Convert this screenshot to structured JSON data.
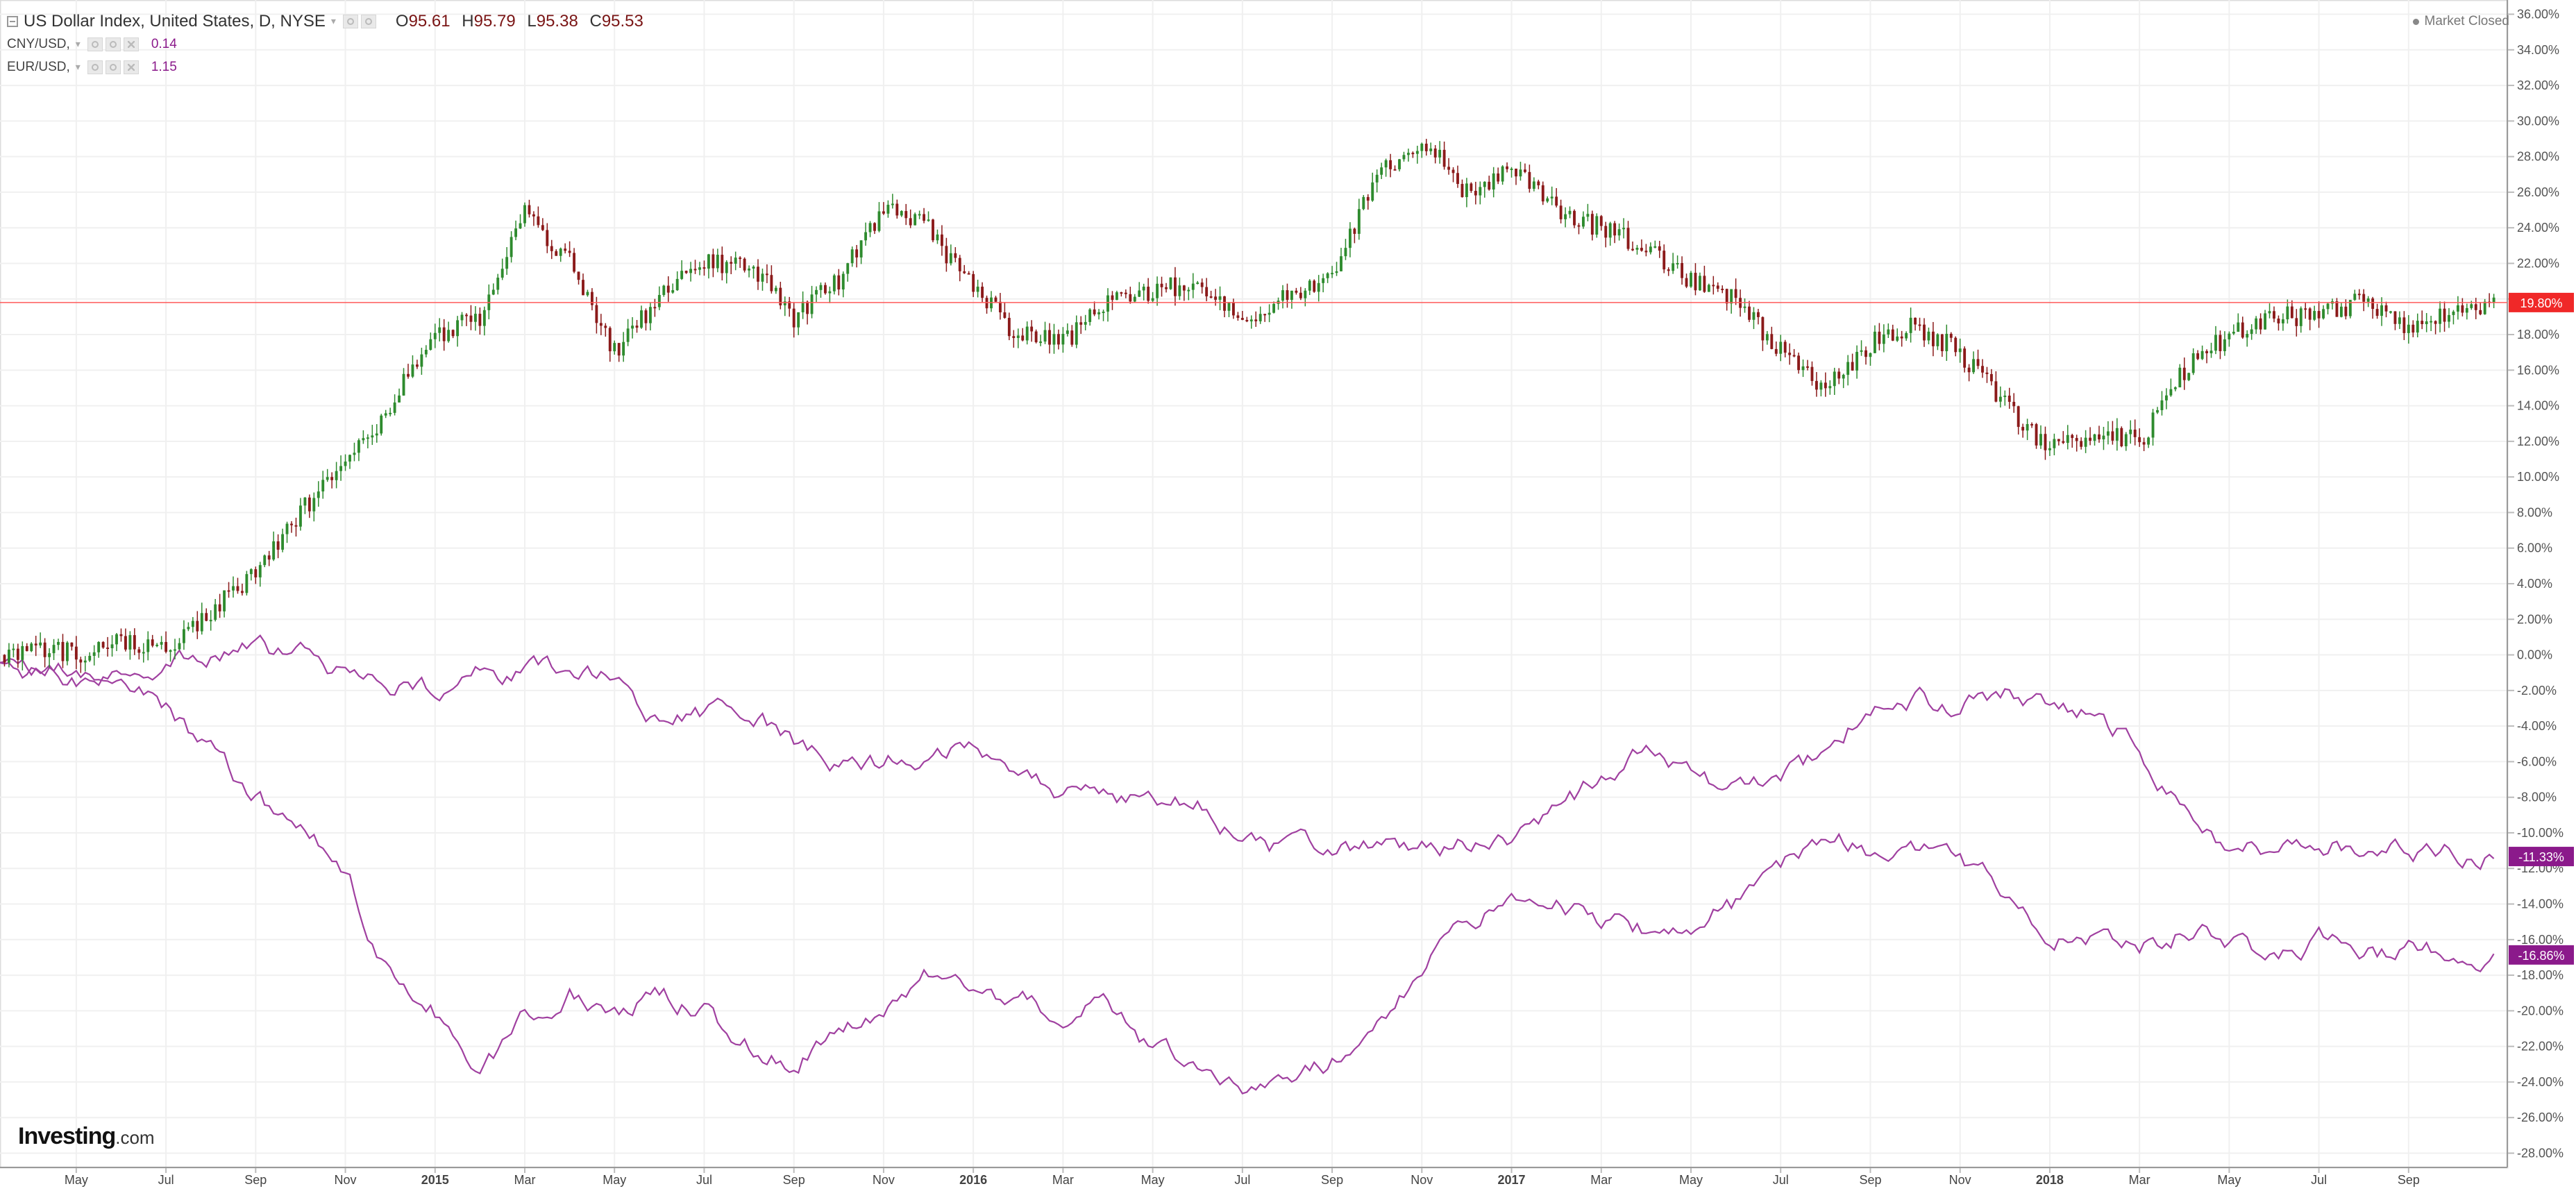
{
  "header": {
    "title": "US Dollar Index, United States, D, NYSE",
    "ohlc": [
      {
        "key": "O",
        "value": "95.61"
      },
      {
        "key": "H",
        "value": "95.79"
      },
      {
        "key": "L",
        "value": "95.38"
      },
      {
        "key": "C",
        "value": "95.53"
      }
    ]
  },
  "compare": [
    {
      "label": "CNY/USD,",
      "value": "0.14"
    },
    {
      "label": "EUR/USD,",
      "value": "1.15"
    }
  ],
  "market_status": "Market Closed",
  "logo": {
    "main": "Investing",
    "suffix": ".com"
  },
  "colors": {
    "up": "#2e8b2e",
    "down": "#8b1a1a",
    "compare": "#a040a0",
    "price_line": "#ff5a5a",
    "price_badge": "#f02828",
    "compare_badge": "#8b1a8b"
  },
  "chart_data": {
    "type": "line",
    "description_of_axes": "percent change from start",
    "x_ticks": [
      "May",
      "Jul",
      "Sep",
      "Nov",
      "2015",
      "Mar",
      "May",
      "Jul",
      "Sep",
      "Nov",
      "2016",
      "Mar",
      "May",
      "Jul",
      "Sep",
      "Nov",
      "2017",
      "Mar",
      "May",
      "Jul",
      "Sep",
      "Nov",
      "2018",
      "Mar",
      "May",
      "Jul",
      "Sep"
    ],
    "x_month_index": [
      0,
      2,
      4,
      6,
      8,
      10,
      12,
      14,
      16,
      18,
      20,
      22,
      24,
      26,
      28,
      30,
      32,
      34,
      36,
      38,
      40,
      42,
      44,
      46,
      48,
      50,
      52
    ],
    "x_bold": [
      false,
      false,
      false,
      false,
      true,
      false,
      false,
      false,
      false,
      false,
      true,
      false,
      false,
      false,
      false,
      false,
      true,
      false,
      false,
      false,
      false,
      false,
      true,
      false,
      false,
      false,
      false
    ],
    "x_range_months": [
      -1.7,
      54.2
    ],
    "y_ticks": [
      "36.00%",
      "34.00%",
      "32.00%",
      "30.00%",
      "28.00%",
      "26.00%",
      "24.00%",
      "22.00%",
      "20.00%",
      "18.00%",
      "16.00%",
      "14.00%",
      "12.00%",
      "10.00%",
      "8.00%",
      "6.00%",
      "4.00%",
      "2.00%",
      "0.00%",
      "-2.00%",
      "-4.00%",
      "-6.00%",
      "-8.00%",
      "-10.00%",
      "-12.00%",
      "-14.00%",
      "-16.00%",
      "-18.00%",
      "-20.00%",
      "-22.00%",
      "-24.00%",
      "-26.00%",
      "-28.00%"
    ],
    "y_range": [
      -28.8,
      36.8
    ],
    "grid": true,
    "series": [
      {
        "name": "US Dollar Index",
        "style": "candlestick",
        "last_label": "19.80%",
        "months": [
          -1.7,
          -1,
          0,
          1,
          2,
          3,
          4,
          5,
          6,
          7,
          8,
          9,
          10,
          11,
          12,
          13,
          14,
          15,
          16,
          17,
          18,
          19,
          20,
          21,
          22,
          23,
          24,
          25,
          26,
          27,
          28,
          29,
          30,
          31,
          32,
          33,
          34,
          35,
          36,
          37,
          38,
          39,
          40,
          41,
          42,
          43,
          44,
          45,
          46,
          47,
          48,
          49,
          50,
          51,
          52,
          53,
          54
        ],
        "values": [
          0,
          0.5,
          0,
          0.8,
          0.5,
          2.5,
          4.5,
          8,
          10.5,
          14,
          18,
          19,
          25,
          22,
          17,
          20,
          22,
          22,
          19,
          21,
          25,
          24,
          20.5,
          18,
          17.5,
          20,
          20.5,
          21,
          19,
          20,
          21.5,
          27,
          29,
          26,
          27.5,
          25,
          24,
          23,
          21,
          20,
          17,
          15,
          17.5,
          18.5,
          17,
          14,
          11.5,
          12.5,
          12,
          16,
          18,
          19,
          19,
          20,
          18.5,
          19.5,
          19.8
        ]
      },
      {
        "name": "CNY/USD",
        "style": "line",
        "last_label": "-11.33%",
        "months": [
          -1.7,
          -1,
          0,
          1,
          2,
          3,
          4,
          5,
          6,
          7,
          8,
          9,
          10,
          11,
          12,
          13,
          14,
          15,
          16,
          17,
          18,
          19,
          20,
          21,
          22,
          23,
          24,
          25,
          26,
          27,
          28,
          29,
          30,
          31,
          32,
          33,
          34,
          35,
          36,
          37,
          38,
          39,
          40,
          41,
          42,
          43,
          44,
          45,
          46,
          47,
          48,
          49,
          50,
          51,
          52,
          53,
          54
        ],
        "values": [
          0,
          -1,
          -1.5,
          -1,
          -0.2,
          0,
          0.3,
          0,
          -1,
          -1.5,
          -2,
          -1,
          -1,
          -1,
          -1,
          -4,
          -3.5,
          -3,
          -5,
          -6.5,
          -6,
          -5.5,
          -5,
          -6,
          -7.8,
          -8,
          -8,
          -8.5,
          -10.5,
          -11,
          -10.8,
          -11,
          -11,
          -10.5,
          -10.5,
          -9,
          -7,
          -5.5,
          -7,
          -7.5,
          -7,
          -5.5,
          -3,
          -2.5,
          -3,
          -2,
          -3,
          -3.5,
          -5,
          -9,
          -11,
          -11,
          -10.5,
          -10.8,
          -11,
          -11.2,
          -11.33
        ]
      },
      {
        "name": "EUR/USD",
        "style": "line",
        "last_label": "-16.86%",
        "months": [
          -1.7,
          -1,
          0,
          1,
          2,
          3,
          4,
          5,
          6,
          7,
          8,
          9,
          10,
          11,
          12,
          13,
          14,
          15,
          16,
          17,
          18,
          19,
          20,
          21,
          22,
          23,
          24,
          25,
          26,
          27,
          28,
          29,
          30,
          31,
          32,
          33,
          34,
          35,
          36,
          37,
          38,
          39,
          40,
          41,
          42,
          43,
          44,
          45,
          46,
          47,
          48,
          49,
          50,
          51,
          52,
          53,
          54
        ],
        "values": [
          0,
          -1,
          -1,
          -1.5,
          -3,
          -5.5,
          -8,
          -10,
          -12,
          -18,
          -20,
          -24,
          -20,
          -19,
          -20,
          -19,
          -20,
          -22,
          -23,
          -21,
          -20,
          -18,
          -19,
          -19.5,
          -20,
          -19.5,
          -22,
          -23.5,
          -24,
          -24,
          -23,
          -20,
          -18,
          -15,
          -13.5,
          -14,
          -15,
          -15.5,
          -15,
          -14,
          -12,
          -10,
          -11,
          -11,
          -11.5,
          -13,
          -16,
          -16,
          -16.5,
          -15.5,
          -16,
          -17,
          -16,
          -17,
          -16.5,
          -16.9,
          -16.86
        ]
      }
    ]
  }
}
